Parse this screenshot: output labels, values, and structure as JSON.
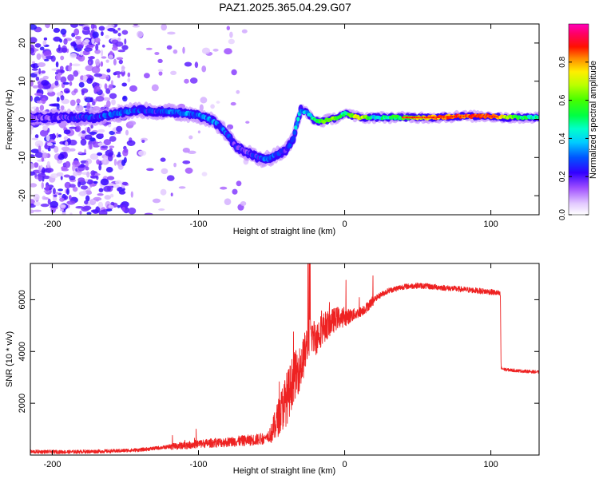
{
  "figure": {
    "title": "PAZ1.2025.365.04.29.G07"
  },
  "chart_data": [
    {
      "type": "heatmap",
      "name": "spectrogram",
      "xlabel": "Height of straight line (km)",
      "ylabel": "Frequency (Hz)",
      "xlim": [
        -215,
        133
      ],
      "ylim": [
        -25,
        25
      ],
      "xticks": [
        -200,
        -100,
        0,
        100
      ],
      "yticks": [
        -20,
        -10,
        0,
        10,
        20
      ],
      "colorbar": {
        "label": "Normalized spectral amplitude",
        "range": [
          0,
          1
        ],
        "ticks": [
          0.0,
          0.2,
          0.4,
          0.6,
          0.8
        ],
        "tick_labels": [
          "0.0",
          "0.2",
          "0.4",
          "0.6",
          "0.8"
        ]
      },
      "ridge": {
        "description_units": "x in km, frequency in Hz",
        "x": [
          -212,
          -190,
          -170,
          -150,
          -140,
          -130,
          -120,
          -110,
          -100,
          -92,
          -85,
          -80,
          -75,
          -70,
          -65,
          -60,
          -55,
          -50,
          -45,
          -40,
          -35,
          -32,
          -30,
          -25,
          -20,
          -15,
          -10,
          -5,
          0,
          5,
          10,
          20,
          30,
          40,
          60,
          80,
          100,
          110,
          120,
          133
        ],
        "frequency": [
          0.5,
          0.5,
          0.5,
          2,
          2.5,
          2,
          2,
          1.5,
          1,
          0,
          -2,
          -4,
          -7,
          -8,
          -9,
          -10,
          -10.5,
          -10,
          -9,
          -8,
          -5,
          0,
          2.5,
          1.5,
          -0.5,
          -0.5,
          0,
          0.5,
          1.5,
          1,
          0.5,
          0.5,
          0.5,
          0.5,
          0.5,
          0.8,
          0.8,
          0.5,
          0.5,
          0.5
        ],
        "amplitude": [
          0.15,
          0.2,
          0.25,
          0.3,
          0.25,
          0.25,
          0.3,
          0.3,
          0.3,
          0.3,
          0.3,
          0.25,
          0.2,
          0.2,
          0.2,
          0.25,
          0.3,
          0.3,
          0.25,
          0.2,
          0.3,
          0.4,
          0.35,
          0.4,
          0.5,
          0.6,
          0.65,
          0.55,
          0.45,
          0.6,
          0.75,
          0.4,
          0.5,
          0.55,
          0.8,
          0.85,
          0.9,
          0.7,
          0.5,
          0.45
        ]
      }
    },
    {
      "type": "line",
      "name": "snr",
      "xlabel": "Height of straight line (km)",
      "ylabel": "SNR (10 * v/v)",
      "xlim": [
        -215,
        133
      ],
      "ylim": [
        0,
        7400
      ],
      "xticks": [
        -200,
        -100,
        0,
        100
      ],
      "yticks": [
        2000,
        4000,
        6000
      ],
      "series": [
        {
          "name": "SNR",
          "color": "#ee2222",
          "x": [
            -215,
            -190,
            -160,
            -140,
            -120,
            -100,
            -90,
            -80,
            -70,
            -60,
            -55,
            -50,
            -45,
            -42,
            -38,
            -35,
            -30,
            -26,
            -23,
            -20,
            -15,
            -10,
            -5,
            0,
            5,
            10,
            15,
            20,
            25,
            30,
            40,
            50,
            60,
            70,
            80,
            90,
            100,
            105,
            106.5,
            107,
            110,
            120,
            133
          ],
          "y": [
            130,
            120,
            150,
            200,
            320,
            430,
            470,
            500,
            550,
            600,
            650,
            850,
            1500,
            1900,
            2400,
            3000,
            3400,
            4200,
            4700,
            4500,
            4900,
            5100,
            5300,
            5300,
            5400,
            5500,
            5700,
            6000,
            6200,
            6350,
            6500,
            6550,
            6500,
            6450,
            6400,
            6350,
            6300,
            6250,
            6200,
            3350,
            3300,
            3250,
            3200
          ]
        }
      ]
    }
  ]
}
